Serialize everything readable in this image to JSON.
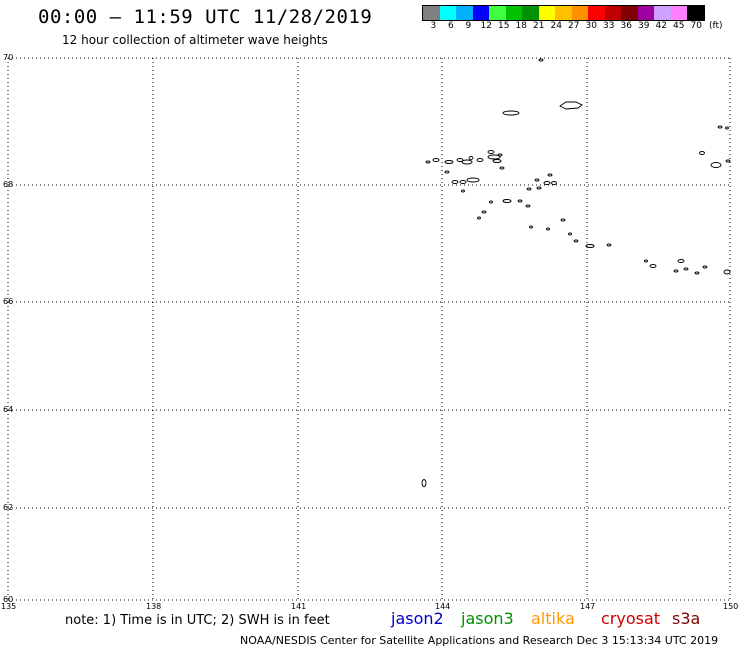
{
  "header": {
    "title": "00:00 – 11:59 UTC 11/28/2019",
    "subtitle": "12 hour collection of altimeter wave heights"
  },
  "legend": {
    "colors": [
      "#808080",
      "#00ffff",
      "#00b0ff",
      "#0000ff",
      "#40ff40",
      "#00c000",
      "#009000",
      "#ffff00",
      "#ffc000",
      "#ff9000",
      "#ff0000",
      "#c00000",
      "#800000",
      "#a000a0",
      "#d0a0ff",
      "#ff80ff",
      "#000000"
    ],
    "labels": [
      "3",
      "6",
      "9",
      "12",
      "15",
      "18",
      "21",
      "24",
      "27",
      "30",
      "33",
      "36",
      "39",
      "42",
      "45",
      "70",
      "(ft)"
    ]
  },
  "map": {
    "lon_range": [
      135,
      150
    ],
    "lat_range": [
      60,
      70
    ],
    "lon_ticks": [
      "135",
      "138",
      "141",
      "144",
      "147",
      "150"
    ],
    "lat_ticks": [
      "70",
      "68",
      "66",
      "64",
      "62",
      "60"
    ],
    "grid": "dotted"
  },
  "footer": {
    "note": "note: 1) Time is in UTC; 2) SWH is in feet",
    "missions": [
      {
        "name": "jason2",
        "color": "#0000cc"
      },
      {
        "name": "jason3",
        "color": "#009000"
      },
      {
        "name": "altika",
        "color": "#ff9900"
      },
      {
        "name": "cryosat",
        "color": "#cc0000"
      },
      {
        "name": "s3a",
        "color": "#800000"
      }
    ],
    "credit": "NOAA/NESDIS Center for Satellite Applications and Research    Dec  3 15:13:34 UTC 2019"
  }
}
